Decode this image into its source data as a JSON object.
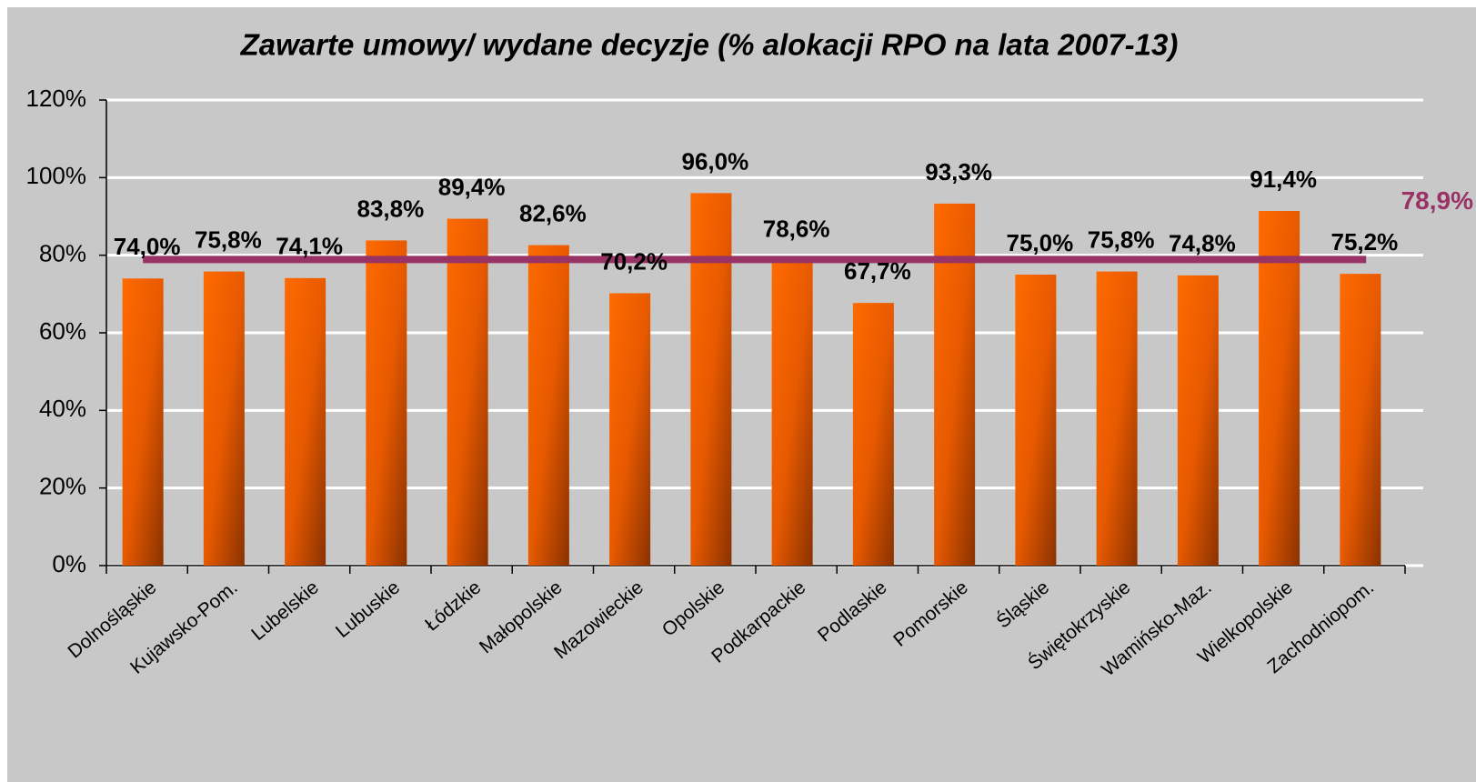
{
  "chart_data": {
    "type": "bar",
    "title": "Zawarte umowy/ wydane decyzje (% alokacji RPO na lata 2007-13)",
    "categories": [
      "Dolnośląskie",
      "Kujawsko-Pom.",
      "Lubelskie",
      "Lubuskie",
      "Łódzkie",
      "Małopolskie",
      "Mazowieckie",
      "Opolskie",
      "Podkarpackie",
      "Podlaskie",
      "Pomorskie",
      "Śląskie",
      "Świętokrzyskie",
      "Wamińsko-Maz.",
      "Wielkopolskie",
      "Zachodniopom."
    ],
    "values": [
      74.0,
      75.8,
      74.1,
      83.8,
      89.4,
      82.6,
      70.2,
      96.0,
      78.6,
      67.7,
      93.3,
      75.0,
      75.8,
      74.8,
      91.4,
      75.2
    ],
    "value_labels": [
      "74,0%",
      "75,8%",
      "74,1%",
      "83,8%",
      "89,4%",
      "82,6%",
      "70,2%",
      "96,0%",
      "78,6%",
      "67,7%",
      "93,3%",
      "75,0%",
      "75,8%",
      "74,8%",
      "91,4%",
      "75,2%"
    ],
    "color": "#ff6600",
    "average": {
      "value": 78.9,
      "label": "78,9%",
      "color": "#993366"
    },
    "ylim": [
      0,
      120
    ],
    "yticks": [
      {
        "value": 0,
        "label": "0%"
      },
      {
        "value": 20,
        "label": "20%"
      },
      {
        "value": 40,
        "label": "40%"
      },
      {
        "value": 60,
        "label": "60%"
      },
      {
        "value": 80,
        "label": "80%"
      },
      {
        "value": 100,
        "label": "100%"
      },
      {
        "value": 120,
        "label": "120%"
      }
    ],
    "grid": true
  }
}
